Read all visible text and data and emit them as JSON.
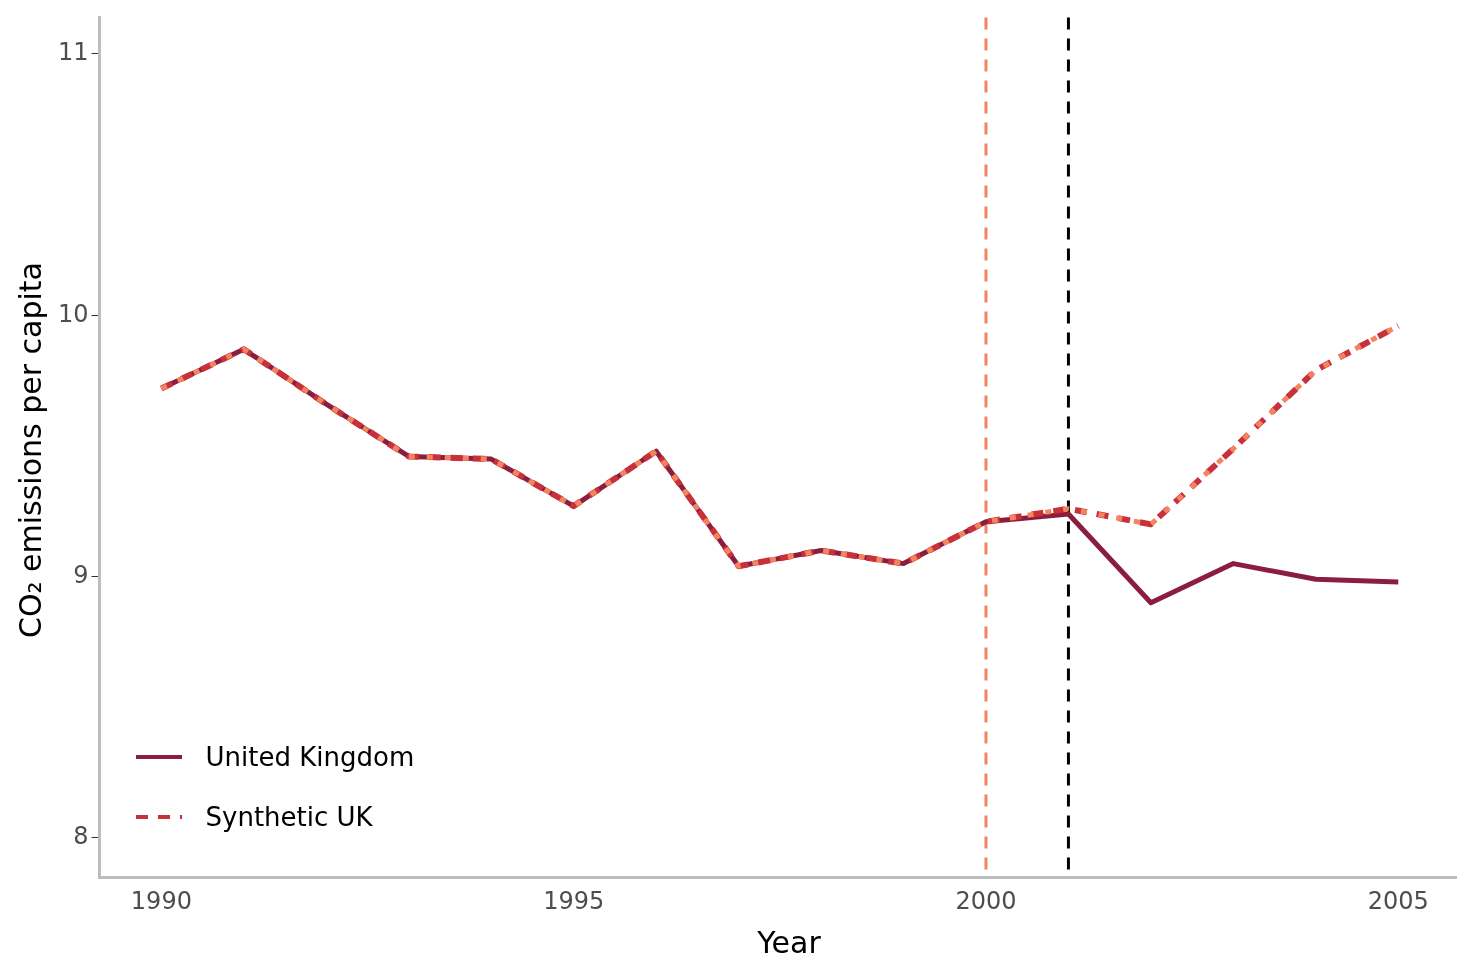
{
  "chart_data": {
    "type": "line",
    "xlabel": "Year",
    "ylabel": "CO₂ emissions per capita",
    "x": [
      1990,
      1991,
      1992,
      1993,
      1994,
      1995,
      1996,
      1997,
      1998,
      1999,
      2000,
      2001,
      2002,
      2003,
      2004,
      2005
    ],
    "series": [
      {
        "name": "United Kingdom",
        "color": "#8b1e3f",
        "line_style": "solid",
        "values": [
          9.72,
          9.87,
          9.66,
          9.46,
          9.45,
          9.27,
          9.48,
          9.04,
          9.1,
          9.05,
          9.21,
          9.24,
          8.9,
          9.05,
          8.99,
          8.98
        ]
      },
      {
        "name": "Synthetic UK",
        "color": "#c8303a",
        "line_style": "dashed",
        "values": [
          9.72,
          9.87,
          9.66,
          9.46,
          9.45,
          9.27,
          9.48,
          9.04,
          9.1,
          9.05,
          9.21,
          9.26,
          9.2,
          9.49,
          9.79,
          9.96
        ]
      },
      {
        "color": "#f4845f",
        "line_style": "dotted",
        "values": [
          9.72,
          9.87,
          9.66,
          9.46,
          9.45,
          9.27,
          9.48,
          9.04,
          9.1,
          9.05,
          9.21,
          9.26,
          9.2,
          9.49,
          9.79,
          9.96
        ]
      }
    ],
    "xlim": [
      1989.25,
      2005.7
    ],
    "xticks": [
      1990,
      1995,
      2000,
      2005
    ],
    "ylim": [
      7.85,
      11.14
    ],
    "yticks": [
      8,
      9,
      10,
      11
    ],
    "ref_lines": [
      {
        "axis": "x",
        "value": 2000,
        "color": "#f4845f",
        "line_style": "dashed"
      },
      {
        "axis": "x",
        "value": 2001,
        "color": "#000000",
        "line_style": "dashed"
      }
    ],
    "grid": false,
    "legend": "bottom left"
  }
}
